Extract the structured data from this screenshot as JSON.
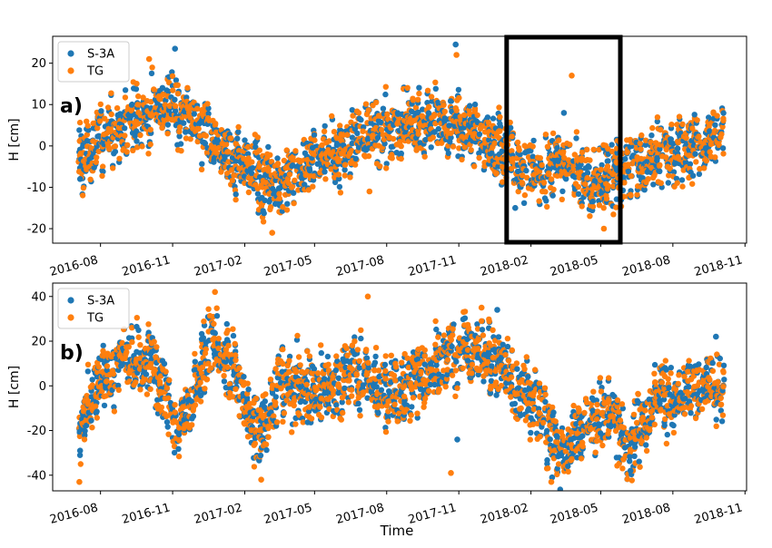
{
  "figure": {
    "xlabel": "Time",
    "colors": {
      "S-3A": "#1f77b4",
      "TG": "#ff7f0e",
      "highlight": "#000000"
    }
  },
  "chart_data": [
    {
      "type": "scatter",
      "panel_label": "a)",
      "ylabel": "H [cm]",
      "xlabel": "",
      "xlim": [
        "2016-06-01",
        "2018-11-03"
      ],
      "ylim": [
        -23.5,
        26.5
      ],
      "yticks": [
        -20,
        -10,
        0,
        10,
        20
      ],
      "xticks": [
        "2016-08",
        "2016-11",
        "2017-02",
        "2017-05",
        "2017-08",
        "2017-11",
        "2018-02",
        "2018-05",
        "2018-08",
        "2018-11"
      ],
      "legend": {
        "position": "top-left",
        "entries": [
          "S-3A",
          "TG"
        ]
      },
      "highlight_box": {
        "x_from": "2018-01-01",
        "x_to": "2018-05-26"
      },
      "trend": [
        {
          "x": "2016-07-05",
          "y": -4
        },
        {
          "x": "2016-08-01",
          "y": 1
        },
        {
          "x": "2016-09-15",
          "y": 6
        },
        {
          "x": "2016-11-01",
          "y": 10
        },
        {
          "x": "2016-12-05",
          "y": 5
        },
        {
          "x": "2017-01-10",
          "y": -2
        },
        {
          "x": "2017-02-15",
          "y": -7
        },
        {
          "x": "2017-03-20",
          "y": -10
        },
        {
          "x": "2017-04-20",
          "y": -5
        },
        {
          "x": "2017-06-15",
          "y": 0
        },
        {
          "x": "2017-08-01",
          "y": 4
        },
        {
          "x": "2017-10-01",
          "y": 6
        },
        {
          "x": "2017-11-15",
          "y": 4
        },
        {
          "x": "2018-01-01",
          "y": -3
        },
        {
          "x": "2018-02-01",
          "y": -7
        },
        {
          "x": "2018-03-10",
          "y": -3
        },
        {
          "x": "2018-04-20",
          "y": -9
        },
        {
          "x": "2018-05-20",
          "y": -6
        },
        {
          "x": "2018-07-15",
          "y": -3
        },
        {
          "x": "2018-09-10",
          "y": 1
        },
        {
          "x": "2018-10-05",
          "y": 5
        }
      ],
      "scatter_spread": 4.5,
      "series": [
        {
          "name": "S-3A",
          "points": [
            {
              "x": "2016-07-06",
              "y": -8
            },
            {
              "x": "2016-11-04",
              "y": 23.5
            },
            {
              "x": "2017-10-28",
              "y": 24.5
            },
            {
              "x": "2017-03-12",
              "y": -14
            },
            {
              "x": "2018-01-12",
              "y": -15
            },
            {
              "x": "2018-03-15",
              "y": 8
            }
          ]
        },
        {
          "name": "TG",
          "points": [
            {
              "x": "2017-03-08",
              "y": -21
            },
            {
              "x": "2018-03-25",
              "y": 17
            },
            {
              "x": "2017-10-29",
              "y": 22
            },
            {
              "x": "2016-10-02",
              "y": 21
            },
            {
              "x": "2018-05-05",
              "y": -20
            },
            {
              "x": "2017-07-10",
              "y": -11
            }
          ]
        }
      ]
    },
    {
      "type": "scatter",
      "panel_label": "b)",
      "ylabel": "H [cm]",
      "xlabel": "Time",
      "xlim": [
        "2016-06-01",
        "2018-11-03"
      ],
      "ylim": [
        -47,
        46
      ],
      "yticks": [
        -40,
        -20,
        0,
        20,
        40
      ],
      "xticks": [
        "2016-08",
        "2016-11",
        "2017-02",
        "2017-05",
        "2017-08",
        "2017-11",
        "2018-02",
        "2018-05",
        "2018-08",
        "2018-11"
      ],
      "legend": {
        "position": "top-left",
        "entries": [
          "S-3A",
          "TG"
        ]
      },
      "trend": [
        {
          "x": "2016-07-05",
          "y": -20
        },
        {
          "x": "2016-08-01",
          "y": 5
        },
        {
          "x": "2016-09-10",
          "y": 12
        },
        {
          "x": "2016-10-10",
          "y": 8
        },
        {
          "x": "2016-11-05",
          "y": -20
        },
        {
          "x": "2016-11-25",
          "y": -5
        },
        {
          "x": "2016-12-20",
          "y": 20
        },
        {
          "x": "2017-01-20",
          "y": 5
        },
        {
          "x": "2017-02-20",
          "y": -25
        },
        {
          "x": "2017-03-20",
          "y": 5
        },
        {
          "x": "2017-05-01",
          "y": -5
        },
        {
          "x": "2017-06-15",
          "y": 5
        },
        {
          "x": "2017-08-01",
          "y": -5
        },
        {
          "x": "2017-09-15",
          "y": 5
        },
        {
          "x": "2017-11-01",
          "y": 15
        },
        {
          "x": "2017-12-15",
          "y": 15
        },
        {
          "x": "2018-01-15",
          "y": 0
        },
        {
          "x": "2018-02-10",
          "y": -10
        },
        {
          "x": "2018-03-10",
          "y": -30
        },
        {
          "x": "2018-04-10",
          "y": -20
        },
        {
          "x": "2018-05-10",
          "y": -10
        },
        {
          "x": "2018-06-05",
          "y": -30
        },
        {
          "x": "2018-07-10",
          "y": -5
        },
        {
          "x": "2018-09-15",
          "y": 0
        },
        {
          "x": "2018-10-05",
          "y": 0
        }
      ],
      "scatter_spread": 9,
      "series": [
        {
          "name": "S-3A",
          "points": [
            {
              "x": "2016-07-06",
              "y": -29
            },
            {
              "x": "2017-12-20",
              "y": 34
            },
            {
              "x": "2018-02-28",
              "y": -41
            },
            {
              "x": "2018-06-08",
              "y": -38
            },
            {
              "x": "2017-10-30",
              "y": -24
            },
            {
              "x": "2018-09-25",
              "y": 22
            }
          ]
        },
        {
          "name": "TG",
          "points": [
            {
              "x": "2016-07-05",
              "y": -43
            },
            {
              "x": "2016-12-25",
              "y": 42
            },
            {
              "x": "2017-07-08",
              "y": 40
            },
            {
              "x": "2017-11-30",
              "y": 35
            },
            {
              "x": "2018-02-27",
              "y": -43
            },
            {
              "x": "2017-10-22",
              "y": -39
            },
            {
              "x": "2017-02-22",
              "y": -42
            }
          ]
        }
      ]
    }
  ]
}
